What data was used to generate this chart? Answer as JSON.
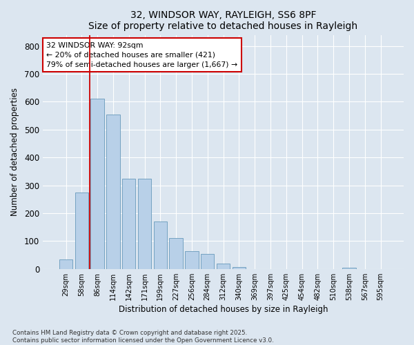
{
  "title1": "32, WINDSOR WAY, RAYLEIGH, SS6 8PF",
  "title2": "Size of property relative to detached houses in Rayleigh",
  "xlabel": "Distribution of detached houses by size in Rayleigh",
  "ylabel": "Number of detached properties",
  "categories": [
    "29sqm",
    "58sqm",
    "86sqm",
    "114sqm",
    "142sqm",
    "171sqm",
    "199sqm",
    "227sqm",
    "256sqm",
    "284sqm",
    "312sqm",
    "340sqm",
    "369sqm",
    "397sqm",
    "425sqm",
    "454sqm",
    "482sqm",
    "510sqm",
    "538sqm",
    "567sqm",
    "595sqm"
  ],
  "values": [
    35,
    275,
    610,
    555,
    325,
    325,
    170,
    110,
    63,
    55,
    20,
    8,
    0,
    0,
    0,
    0,
    0,
    0,
    4,
    0,
    0
  ],
  "bar_color": "#b8d0e8",
  "bar_edge_color": "#6699bb",
  "vline_color": "#cc0000",
  "vline_x": 1.5,
  "annotation_text": "32 WINDSOR WAY: 92sqm\n← 20% of detached houses are smaller (421)\n79% of semi-detached houses are larger (1,667) →",
  "annotation_box_facecolor": "#ffffff",
  "annotation_box_edgecolor": "#cc0000",
  "ylim": [
    0,
    840
  ],
  "yticks": [
    0,
    100,
    200,
    300,
    400,
    500,
    600,
    700,
    800
  ],
  "background_color": "#dce6f0",
  "figure_facecolor": "#dce6f0",
  "footer1": "Contains HM Land Registry data © Crown copyright and database right 2025.",
  "footer2": "Contains public sector information licensed under the Open Government Licence v3.0."
}
